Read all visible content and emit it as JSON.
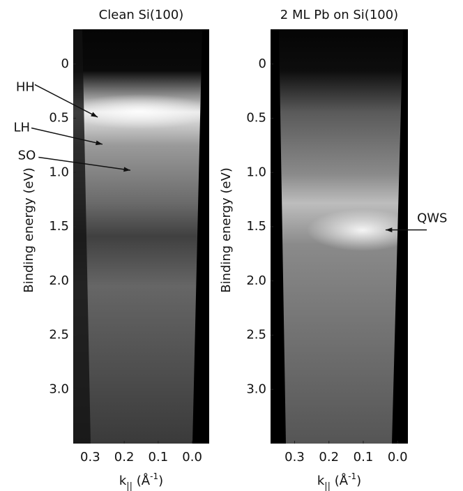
{
  "chart_data": [
    {
      "type": "image",
      "title": "Clean Si(100)",
      "y_label": "Binding energy (eV)",
      "x_label": [
        "k",
        "||",
        " (Å",
        "-1",
        ")"
      ],
      "xlim": [
        0.35,
        -0.05
      ],
      "xticks": [
        0.3,
        0.2,
        0.1,
        {
          "value": 0,
          "label": "0.0"
        }
      ],
      "ylim": [
        -0.32,
        3.5
      ],
      "yticks": [
        0,
        0.5,
        {
          "value": 1,
          "label": "1.0"
        },
        1.5,
        {
          "value": 2,
          "label": "2.0"
        },
        2.5,
        {
          "value": 3,
          "label": "3.0"
        }
      ],
      "annotations": [
        {
          "text": "HH",
          "xy": [
            0.278,
            0.49
          ],
          "xytext": [
            0.463,
            0.19
          ]
        },
        {
          "text": "LH",
          "xy": [
            0.264,
            0.74
          ],
          "xytext": [
            0.473,
            0.59
          ]
        },
        {
          "text": "SO",
          "xy": [
            0.182,
            0.98
          ],
          "xytext": [
            0.452,
            0.86
          ]
        }
      ]
    },
    {
      "type": "image",
      "title": "2 ML Pb on Si(100)",
      "y_label": "Binding energy (eV)",
      "x_label": [
        "k",
        "||",
        " (Å",
        "-1",
        ")"
      ],
      "xlim": [
        0.37,
        -0.03
      ],
      "xticks": [
        0.3,
        0.2,
        0.1,
        {
          "value": 0,
          "label": "0.0"
        }
      ],
      "ylim": [
        -0.32,
        3.5
      ],
      "yticks": [
        0,
        0.5,
        {
          "value": 1,
          "label": "1.0"
        },
        1.5,
        {
          "value": 2,
          "label": "2.0"
        },
        2.5,
        {
          "value": 3,
          "label": "3.0"
        }
      ],
      "annotations": [
        {
          "text": "QWS",
          "xy": [
            0.035,
            1.53
          ],
          "xytext": [
            -0.085,
            1.53
          ]
        }
      ]
    }
  ]
}
